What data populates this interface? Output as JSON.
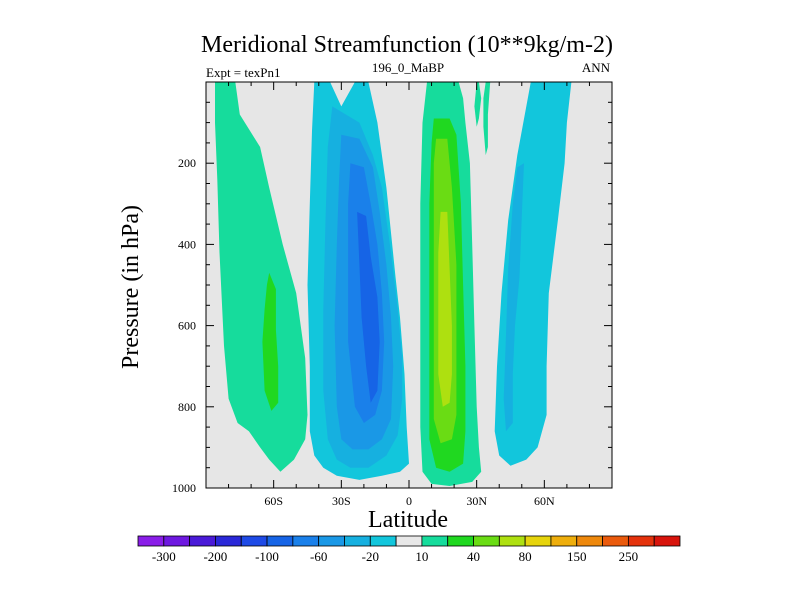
{
  "chart_data": {
    "type": "heatmap",
    "title": "Meridional Streamfunction (10**9kg/m-2)",
    "left_label": "Expt = texPn1",
    "center_label": "196_0_MaBP",
    "right_label": "ANN",
    "xlabel": "Latitude",
    "ylabel": "Pressure (in hPa)",
    "xlim": [
      -90,
      90
    ],
    "ylim": [
      1000,
      0
    ],
    "x_ticks": [
      {
        "value": -60,
        "label": "60S"
      },
      {
        "value": -30,
        "label": "30S"
      },
      {
        "value": 0,
        "label": "0"
      },
      {
        "value": 30,
        "label": "30N"
      },
      {
        "value": 60,
        "label": "60N"
      }
    ],
    "y_ticks": [
      {
        "value": 200,
        "label": "200"
      },
      {
        "value": 400,
        "label": "400"
      },
      {
        "value": 600,
        "label": "600"
      },
      {
        "value": 800,
        "label": "800"
      },
      {
        "value": 1000,
        "label": "1000"
      }
    ],
    "colorbar": {
      "levels": [
        -300,
        -250,
        -200,
        -150,
        -100,
        -80,
        -60,
        -40,
        -20,
        -10,
        10,
        20,
        40,
        60,
        80,
        100,
        150,
        200,
        250,
        300
      ],
      "labels": [
        "-300",
        "-200",
        "-100",
        "-60",
        "-20",
        "10",
        "40",
        "80",
        "150",
        "250"
      ],
      "colors": [
        "#8a1ee8",
        "#6e18e0",
        "#4a1ad8",
        "#2a28d8",
        "#1e4ae6",
        "#1664e6",
        "#1a80ea",
        "#1a98e6",
        "#16b0e0",
        "#12c6dc",
        "#e8e8e8",
        "#16dc9c",
        "#20d820",
        "#6adc14",
        "#aee010",
        "#e6d40c",
        "#eeae0c",
        "#ee880c",
        "#ea5a0c",
        "#e4320c",
        "#d8140c"
      ]
    },
    "regions": [
      {
        "name": "high-lat-south-cell",
        "level": "10 to 20",
        "color": "#16dc9c",
        "outline": [
          [
            -86,
            0
          ],
          [
            -77,
            0
          ],
          [
            -75,
            80
          ],
          [
            -66,
            160
          ],
          [
            -62,
            260
          ],
          [
            -56,
            400
          ],
          [
            -50,
            520
          ],
          [
            -46,
            680
          ],
          [
            -45,
            820
          ],
          [
            -46,
            880
          ],
          [
            -51,
            930
          ],
          [
            -57,
            960
          ],
          [
            -62,
            930
          ],
          [
            -66,
            900
          ],
          [
            -71,
            860
          ],
          [
            -76,
            840
          ],
          [
            -80,
            780
          ],
          [
            -82,
            650
          ],
          [
            -84,
            420
          ],
          [
            -85,
            240
          ],
          [
            -86,
            100
          ]
        ]
      },
      {
        "name": "high-lat-south-core",
        "level": "20 to 40",
        "color": "#20d820",
        "outline": [
          [
            -62,
            470
          ],
          [
            -59,
            510
          ],
          [
            -59,
            610
          ],
          [
            -58,
            700
          ],
          [
            -58,
            790
          ],
          [
            -61,
            810
          ],
          [
            -64,
            760
          ],
          [
            -65,
            640
          ],
          [
            -64,
            560
          ],
          [
            -63,
            500
          ]
        ]
      },
      {
        "name": "southern-cell",
        "level": "-20 to -10",
        "color": "#12c6dc",
        "outline": [
          [
            -42,
            0
          ],
          [
            -35,
            0
          ],
          [
            -30,
            60
          ],
          [
            -24,
            0
          ],
          [
            -18,
            0
          ],
          [
            -14,
            100
          ],
          [
            -10,
            260
          ],
          [
            -6,
            480
          ],
          [
            -4,
            580
          ],
          [
            -2,
            720
          ],
          [
            -1,
            850
          ],
          [
            0,
            940
          ],
          [
            -4,
            960
          ],
          [
            -12,
            970
          ],
          [
            -22,
            980
          ],
          [
            -32,
            970
          ],
          [
            -38,
            950
          ],
          [
            -42,
            920
          ],
          [
            -44,
            860
          ],
          [
            -44,
            700
          ],
          [
            -45,
            500
          ],
          [
            -44,
            300
          ],
          [
            -43,
            120
          ]
        ]
      },
      {
        "name": "southern-cell-2",
        "level": "-40 to -20",
        "color": "#16b0e0",
        "outline": [
          [
            -34,
            60
          ],
          [
            -28,
            80
          ],
          [
            -22,
            100
          ],
          [
            -16,
            180
          ],
          [
            -12,
            260
          ],
          [
            -8,
            420
          ],
          [
            -5,
            560
          ],
          [
            -3,
            680
          ],
          [
            -3,
            780
          ],
          [
            -5,
            870
          ],
          [
            -10,
            920
          ],
          [
            -18,
            950
          ],
          [
            -26,
            950
          ],
          [
            -32,
            930
          ],
          [
            -36,
            880
          ],
          [
            -38,
            760
          ],
          [
            -38,
            560
          ],
          [
            -37,
            340
          ],
          [
            -36,
            160
          ]
        ]
      },
      {
        "name": "southern-cell-3",
        "level": "-60 to -40",
        "color": "#1a98e6",
        "outline": [
          [
            -30,
            130
          ],
          [
            -22,
            140
          ],
          [
            -16,
            210
          ],
          [
            -13,
            320
          ],
          [
            -10,
            450
          ],
          [
            -8,
            580
          ],
          [
            -7,
            700
          ],
          [
            -8,
            830
          ],
          [
            -12,
            880
          ],
          [
            -18,
            905
          ],
          [
            -25,
            905
          ],
          [
            -30,
            880
          ],
          [
            -32,
            800
          ],
          [
            -33,
            600
          ],
          [
            -32,
            400
          ],
          [
            -31,
            240
          ]
        ]
      },
      {
        "name": "southern-cell-4",
        "level": "-80 to -60",
        "color": "#1a80ea",
        "outline": [
          [
            -26,
            200
          ],
          [
            -20,
            210
          ],
          [
            -17,
            300
          ],
          [
            -14,
            400
          ],
          [
            -12,
            520
          ],
          [
            -11,
            640
          ],
          [
            -12,
            760
          ],
          [
            -15,
            820
          ],
          [
            -20,
            840
          ],
          [
            -24,
            800
          ],
          [
            -27,
            640
          ],
          [
            -27,
            440
          ],
          [
            -27,
            300
          ]
        ]
      },
      {
        "name": "southern-core",
        "level": "-100 to -80",
        "color": "#1664e6",
        "outline": [
          [
            -23,
            320
          ],
          [
            -19,
            330
          ],
          [
            -17,
            430
          ],
          [
            -14,
            530
          ],
          [
            -13,
            640
          ],
          [
            -14,
            760
          ],
          [
            -17,
            790
          ],
          [
            -19,
            700
          ],
          [
            -21,
            580
          ],
          [
            -22,
            450
          ]
        ]
      },
      {
        "name": "northern-cell",
        "level": "10 to 20",
        "color": "#16dc9c",
        "outline": [
          [
            8,
            0
          ],
          [
            22,
            0
          ],
          [
            24,
            40
          ],
          [
            25,
            100
          ],
          [
            27,
            200
          ],
          [
            28,
            400
          ],
          [
            29,
            600
          ],
          [
            30,
            800
          ],
          [
            31,
            900
          ],
          [
            32,
            960
          ],
          [
            28,
            985
          ],
          [
            18,
            995
          ],
          [
            10,
            990
          ],
          [
            6,
            960
          ],
          [
            5,
            850
          ],
          [
            5,
            600
          ],
          [
            5,
            300
          ],
          [
            6,
            100
          ]
        ]
      },
      {
        "name": "northern-cell-2",
        "level": "20 to 40",
        "color": "#20d820",
        "outline": [
          [
            11,
            90
          ],
          [
            18,
            90
          ],
          [
            21,
            130
          ],
          [
            23,
            300
          ],
          [
            24,
            500
          ],
          [
            25,
            700
          ],
          [
            25,
            860
          ],
          [
            24,
            940
          ],
          [
            18,
            960
          ],
          [
            12,
            950
          ],
          [
            9,
            880
          ],
          [
            9,
            600
          ],
          [
            9,
            300
          ],
          [
            10,
            150
          ]
        ]
      },
      {
        "name": "northern-cell-3",
        "level": "40 to 60",
        "color": "#6adc14",
        "outline": [
          [
            12,
            140
          ],
          [
            17,
            140
          ],
          [
            19,
            260
          ],
          [
            21,
            450
          ],
          [
            21,
            680
          ],
          [
            21,
            820
          ],
          [
            19,
            880
          ],
          [
            14,
            890
          ],
          [
            11,
            830
          ],
          [
            11,
            600
          ],
          [
            11,
            360
          ],
          [
            11,
            200
          ]
        ]
      },
      {
        "name": "northern-core",
        "level": "60 to 80",
        "color": "#aee010",
        "outline": [
          [
            14,
            320
          ],
          [
            17,
            320
          ],
          [
            18,
            460
          ],
          [
            19,
            600
          ],
          [
            19,
            720
          ],
          [
            18,
            790
          ],
          [
            15,
            800
          ],
          [
            13,
            720
          ],
          [
            13,
            560
          ],
          [
            13,
            420
          ]
        ]
      },
      {
        "name": "north-streak-a",
        "level": "10 to 20",
        "color": "#16dc9c",
        "outline": [
          [
            30,
            0
          ],
          [
            31,
            0
          ],
          [
            32,
            40
          ],
          [
            31,
            90
          ],
          [
            30,
            110
          ],
          [
            29,
            60
          ]
        ]
      },
      {
        "name": "north-streak-b",
        "level": "10 to 20",
        "color": "#16dc9c",
        "outline": [
          [
            34,
            0
          ],
          [
            36,
            0
          ],
          [
            35,
            80
          ],
          [
            35,
            160
          ],
          [
            34,
            180
          ],
          [
            33,
            110
          ],
          [
            33,
            40
          ]
        ]
      },
      {
        "name": "north-high-cell",
        "level": "-20 to -10",
        "color": "#12c6dc",
        "outline": [
          [
            54,
            0
          ],
          [
            72,
            0
          ],
          [
            70,
            100
          ],
          [
            69,
            200
          ],
          [
            66,
            340
          ],
          [
            62,
            520
          ],
          [
            61,
            700
          ],
          [
            61,
            820
          ],
          [
            57,
            900
          ],
          [
            52,
            930
          ],
          [
            45,
            945
          ],
          [
            40,
            920
          ],
          [
            38,
            860
          ],
          [
            39,
            700
          ],
          [
            41,
            520
          ],
          [
            44,
            340
          ],
          [
            48,
            180
          ],
          [
            52,
            60
          ]
        ]
      },
      {
        "name": "north-high-core",
        "level": "-40 to -20",
        "color": "#16b0e0",
        "outline": [
          [
            48,
            210
          ],
          [
            51,
            200
          ],
          [
            50,
            330
          ],
          [
            49,
            480
          ],
          [
            47,
            600
          ],
          [
            46,
            720
          ],
          [
            46,
            840
          ],
          [
            43,
            860
          ],
          [
            42,
            780
          ],
          [
            43,
            620
          ],
          [
            44,
            460
          ],
          [
            46,
            300
          ]
        ]
      }
    ]
  }
}
